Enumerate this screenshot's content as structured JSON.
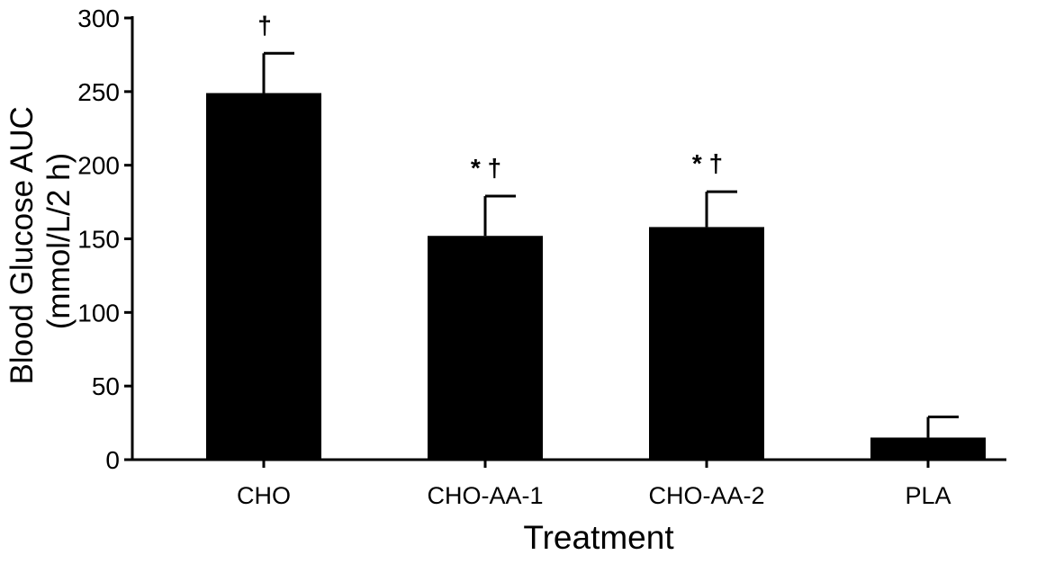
{
  "chart_data": {
    "type": "bar",
    "title": "",
    "xlabel": "Treatment",
    "ylabel": [
      "Blood Glucose AUC",
      "(mmol/L/2 h)"
    ],
    "ylim": [
      0,
      300
    ],
    "yticks": [
      0,
      50,
      100,
      150,
      200,
      250,
      300
    ],
    "grid": false,
    "categories": [
      "CHO",
      "CHO-AA-1",
      "CHO-AA-2",
      "PLA"
    ],
    "values": [
      249,
      152,
      158,
      15
    ],
    "errors": [
      27,
      27,
      24,
      14
    ],
    "annotations": [
      "†",
      "* †",
      "* †",
      ""
    ],
    "colors": {
      "bar": "#000000",
      "axis": "#000000",
      "background": "#ffffff"
    }
  }
}
